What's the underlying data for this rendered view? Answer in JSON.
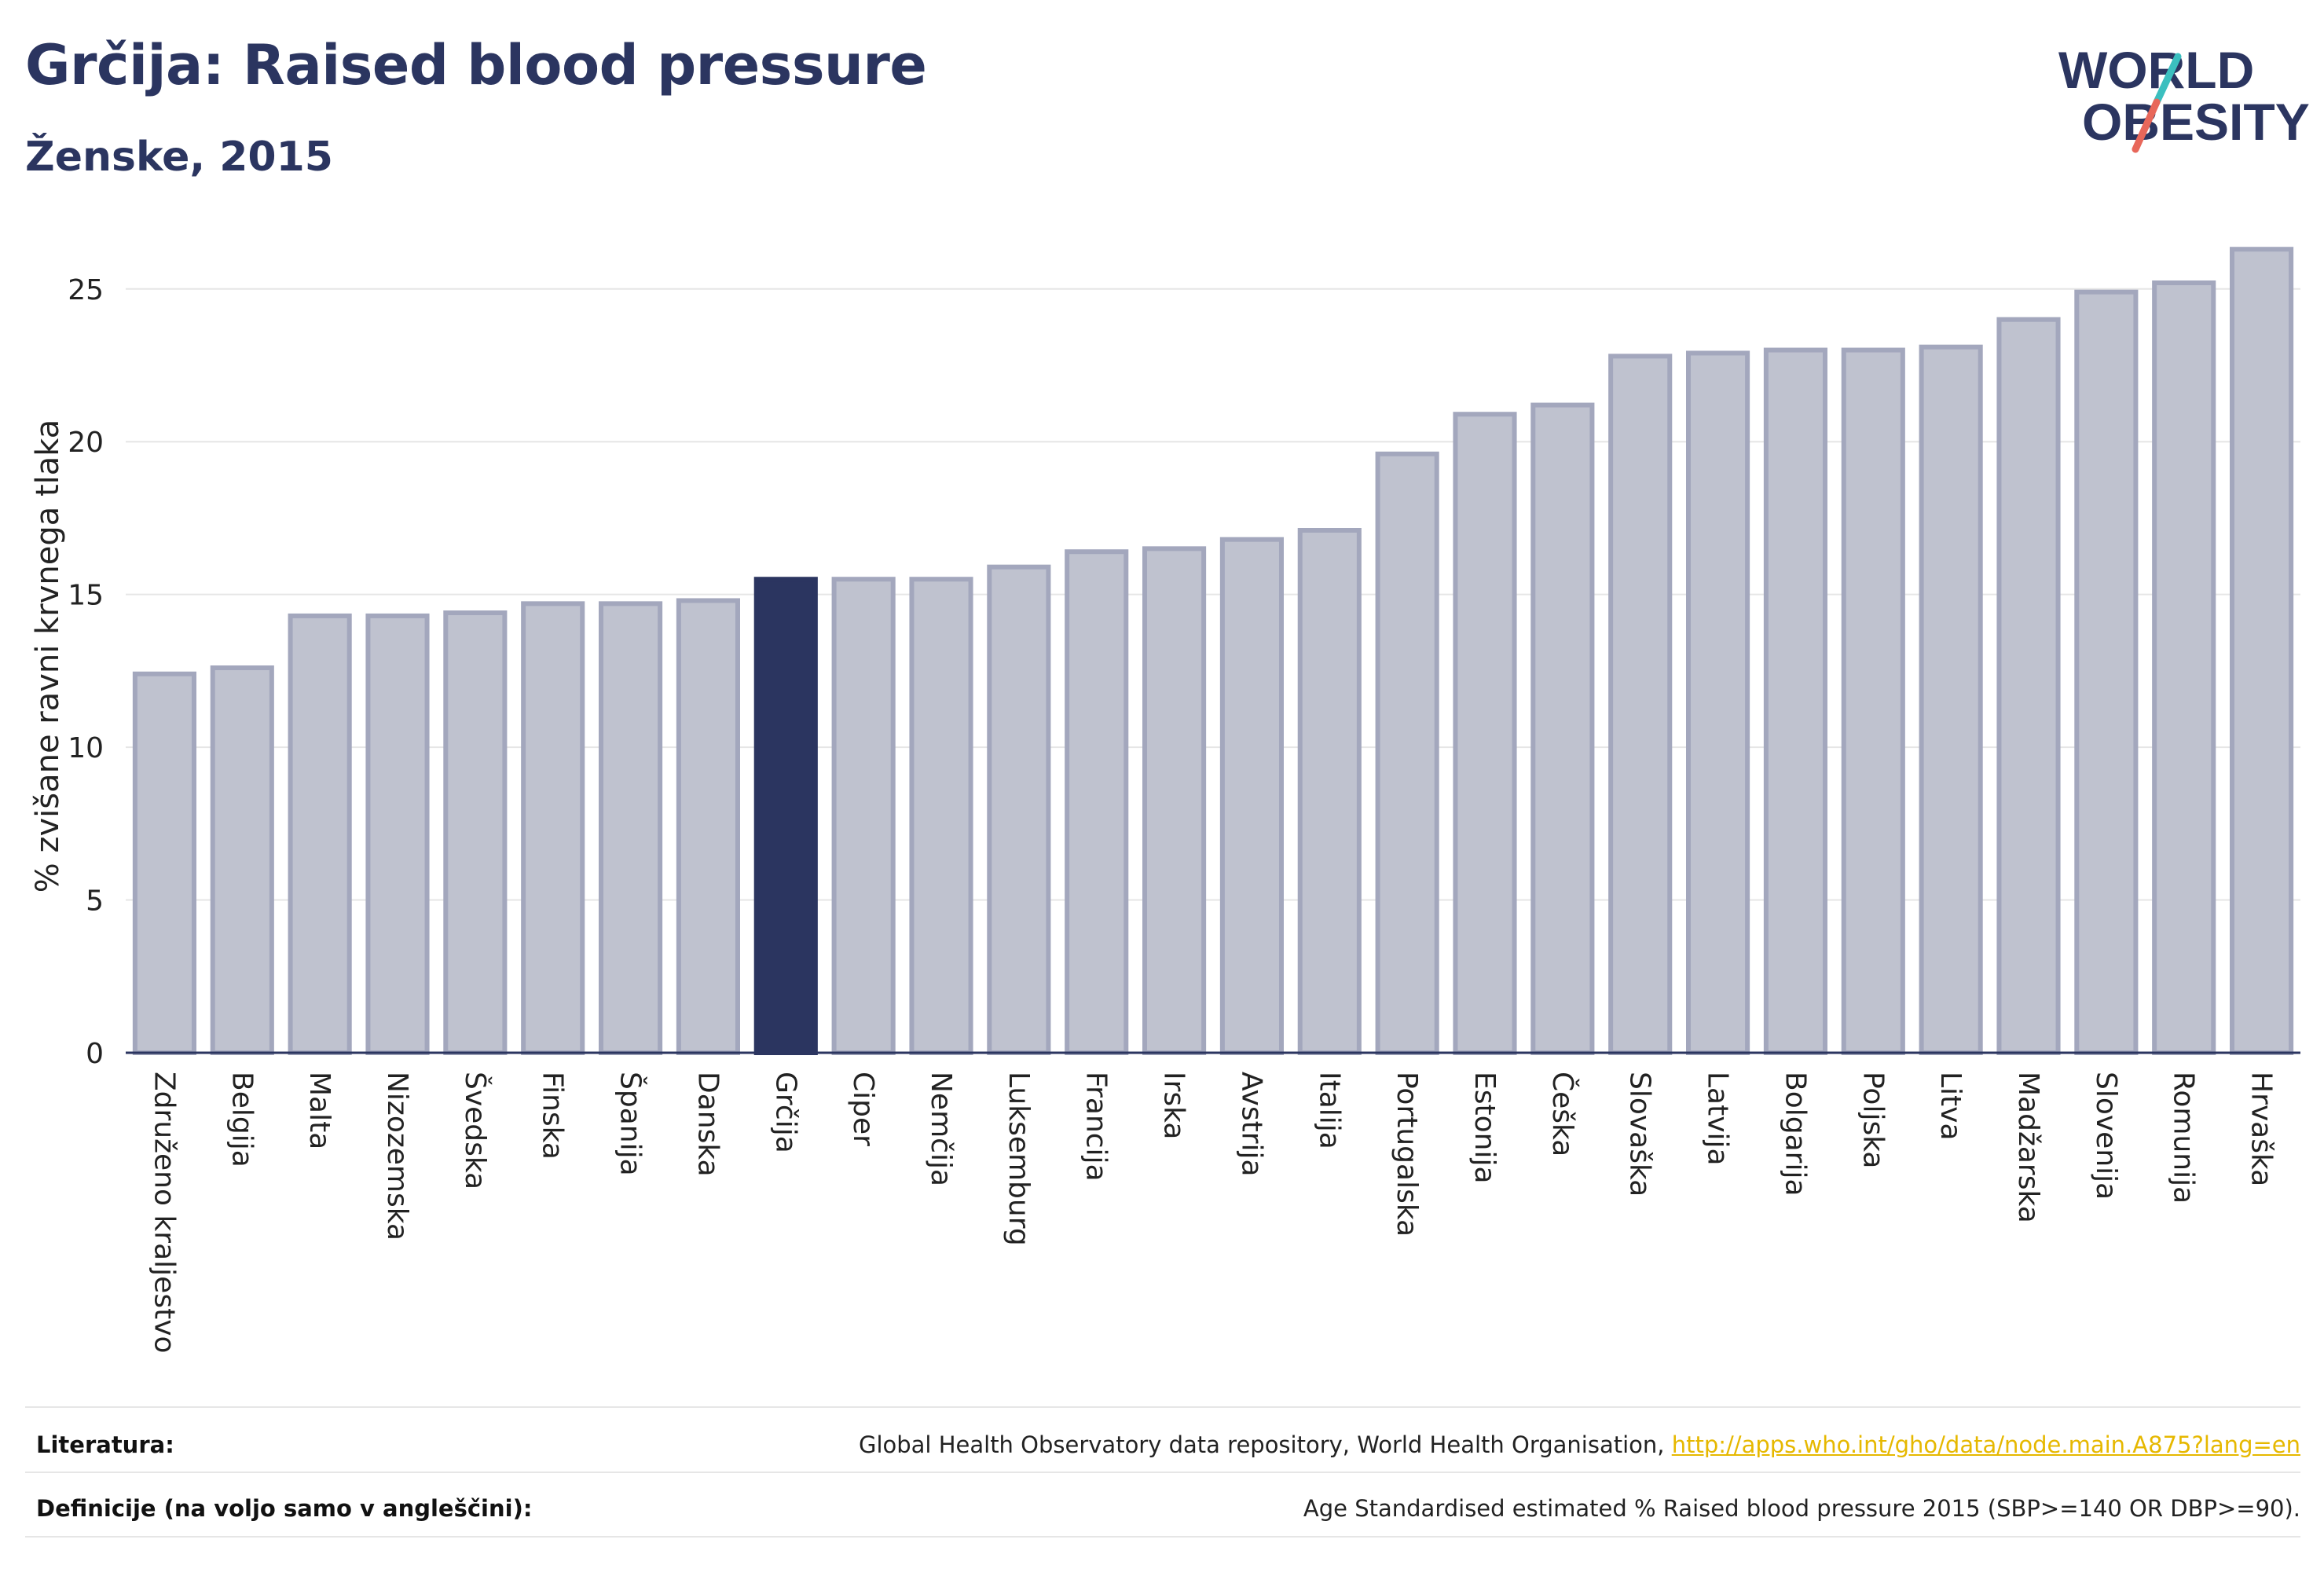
{
  "header": {
    "title": "Grčija: Raised blood pressure",
    "subtitle": "Ženske, 2015"
  },
  "logo": {
    "line1": "WORLD",
    "line2": "OBESITY",
    "slash_colors": [
      "#3bbfbf",
      "#e8675a"
    ]
  },
  "chart_data": {
    "type": "bar",
    "ylabel": "% zvišane ravni krvnega tlaka",
    "ylim": [
      0,
      27
    ],
    "yticks": [
      0,
      5,
      10,
      15,
      20,
      25
    ],
    "grid": true,
    "highlight": "Grčija",
    "colors": {
      "bar": "#bfc2cf",
      "bar_border": "#a3a7bd",
      "highlight": "#2b3560"
    },
    "categories": [
      "Združeno kraljestvo",
      "Belgija",
      "Malta",
      "Nizozemska",
      "Švedska",
      "Finska",
      "Španija",
      "Danska",
      "Grčija",
      "Ciper",
      "Nemčija",
      "Luksemburg",
      "Francija",
      "Irska",
      "Avstrija",
      "Italija",
      "Portugalska",
      "Estonija",
      "Češka",
      "Slovaška",
      "Latvija",
      "Bolgarija",
      "Poljska",
      "Litva",
      "Madžarska",
      "Slovenija",
      "Romunija",
      "Hrvaška"
    ],
    "values": [
      12.4,
      12.6,
      14.3,
      14.3,
      14.4,
      14.7,
      14.7,
      14.8,
      15.5,
      15.5,
      15.5,
      15.9,
      16.4,
      16.5,
      16.8,
      17.1,
      19.6,
      20.9,
      21.2,
      22.8,
      22.9,
      23.0,
      23.0,
      23.1,
      24.0,
      24.9,
      25.2,
      26.3
    ]
  },
  "footer": {
    "literature_label": "Literatura:",
    "literature_text": "Global Health Observatory data repository, World Health Organisation, ",
    "literature_link": "http://apps.who.int/gho/data/node.main.A875?lang=en",
    "definitions_label": "Definicije (na voljo samo v angleščini):",
    "definitions_text": "Age Standardised estimated % Raised blood pressure 2015 (SBP>=140 OR DBP>=90)."
  }
}
